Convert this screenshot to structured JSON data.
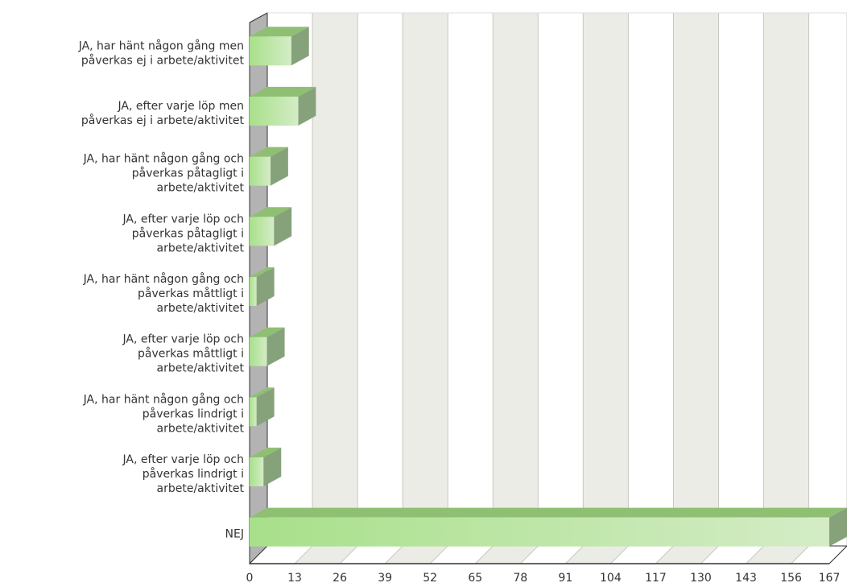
{
  "chart_data": {
    "type": "bar",
    "orientation": "horizontal",
    "style": "3d",
    "title": "",
    "xlabel": "",
    "ylabel": "",
    "categories": [
      [
        "JA, har hänt någon gång men",
        "påverkas ej i arbete/aktivitet"
      ],
      [
        "JA, efter varje löp men",
        "påverkas ej i arbete/aktivitet"
      ],
      [
        "JA, har hänt någon gång och",
        "påverkas påtagligt i",
        "arbete/aktivitet"
      ],
      [
        "JA, efter varje löp och",
        "påverkas påtagligt i",
        "arbete/aktivitet"
      ],
      [
        "JA, har hänt någon gång och",
        "påverkas måttligt i",
        "arbete/aktivitet"
      ],
      [
        "JA, efter varje löp och",
        "påverkas måttligt i",
        "arbete/aktivitet"
      ],
      [
        "JA, har hänt någon gång och",
        "påverkas lindrigt i",
        "arbete/aktivitet"
      ],
      [
        "JA, efter varje löp och",
        "påverkas lindrigt i",
        "arbete/aktivitet"
      ],
      [
        "NEJ"
      ]
    ],
    "values": [
      12,
      14,
      6,
      7,
      2,
      5,
      2,
      4,
      167
    ],
    "xlim": [
      0,
      167
    ],
    "xticks": [
      "0",
      "13",
      "26",
      "39",
      "52",
      "65",
      "78",
      "91",
      "104",
      "117",
      "130",
      "143",
      "156",
      "167"
    ],
    "grid": true,
    "legend": "none",
    "colors": {
      "bar_start": "#a8e08a",
      "bar_end": "#d4ecc6",
      "bar_top": "#8fbf73",
      "bar_side": "#86a27b",
      "band_light": "#ffffff",
      "band_dark": "#ecece6",
      "wall_left": "#b3b3b3",
      "axis": "#333333",
      "grid": "#c8c8c2"
    }
  }
}
